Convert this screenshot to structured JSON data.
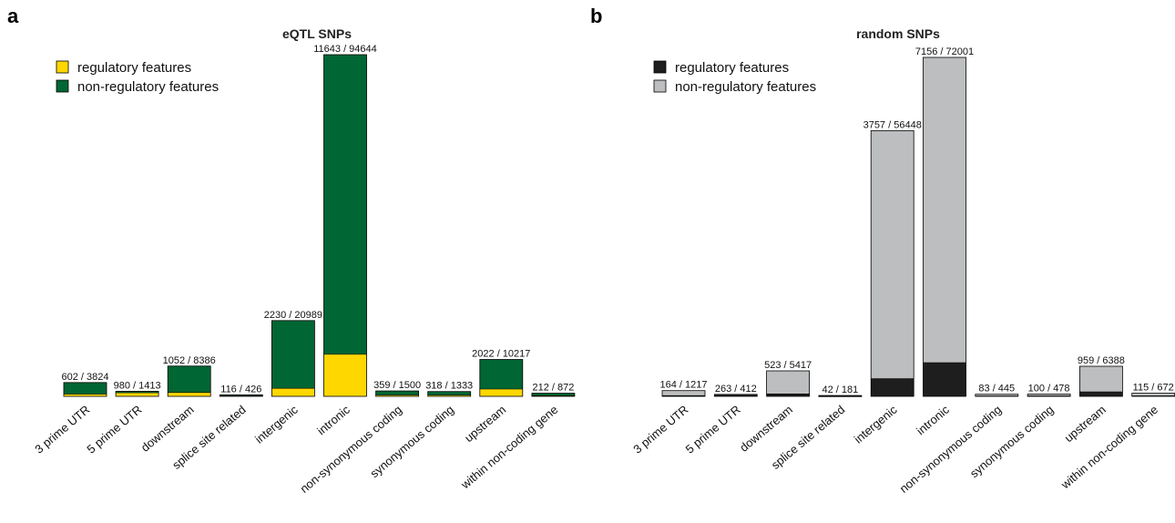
{
  "chart_data": [
    {
      "type": "bar",
      "stacked": true,
      "panel_label": "a",
      "title": "eQTL SNPs",
      "legend_position": "top-left",
      "categories": [
        "3 prime UTR",
        "5 prime UTR",
        "downstream",
        "splice site related",
        "intergenic",
        "intronic",
        "non-synonymous coding",
        "synonymous coding",
        "upstream",
        "within non-coding gene"
      ],
      "series": [
        {
          "name": "regulatory features",
          "color": "#FFD700",
          "values": [
            602,
            980,
            1052,
            116,
            2230,
            11643,
            359,
            318,
            2022,
            212
          ]
        },
        {
          "name": "non-regulatory features",
          "color": "#006633",
          "values": [
            3222,
            433,
            7334,
            310,
            18759,
            83001,
            1141,
            1015,
            8195,
            660
          ]
        }
      ],
      "bar_labels": [
        "602 / 3824",
        "980 / 1413",
        "1052 / 8386",
        "116 / 426",
        "2230 / 20989",
        "11643 / 94644",
        "359 / 1500",
        "318 / 1333",
        "2022 / 10217",
        "212 / 872"
      ],
      "ylim": [
        0,
        94644
      ]
    },
    {
      "type": "bar",
      "stacked": true,
      "panel_label": "b",
      "title": "random SNPs",
      "legend_position": "top-left",
      "categories": [
        "3 prime UTR",
        "5 prime UTR",
        "downstream",
        "splice site related",
        "intergenic",
        "intronic",
        "non-synonymous coding",
        "synonymous coding",
        "upstream",
        "within non-coding gene"
      ],
      "series": [
        {
          "name": "regulatory features",
          "color": "#1E1E1E",
          "values": [
            164,
            263,
            523,
            42,
            3757,
            7156,
            83,
            100,
            959,
            115
          ]
        },
        {
          "name": "non-regulatory features",
          "color": "#BCBEC0",
          "values": [
            1053,
            149,
            4894,
            139,
            52691,
            64845,
            362,
            378,
            5429,
            557
          ]
        }
      ],
      "bar_labels": [
        "164 / 1217",
        "263 / 412",
        "523 / 5417",
        "42 / 181",
        "3757 / 56448",
        "7156 / 72001",
        "83 / 445",
        "100 / 478",
        "959 / 6388",
        "115 / 672"
      ],
      "ylim": [
        0,
        72001
      ]
    }
  ]
}
